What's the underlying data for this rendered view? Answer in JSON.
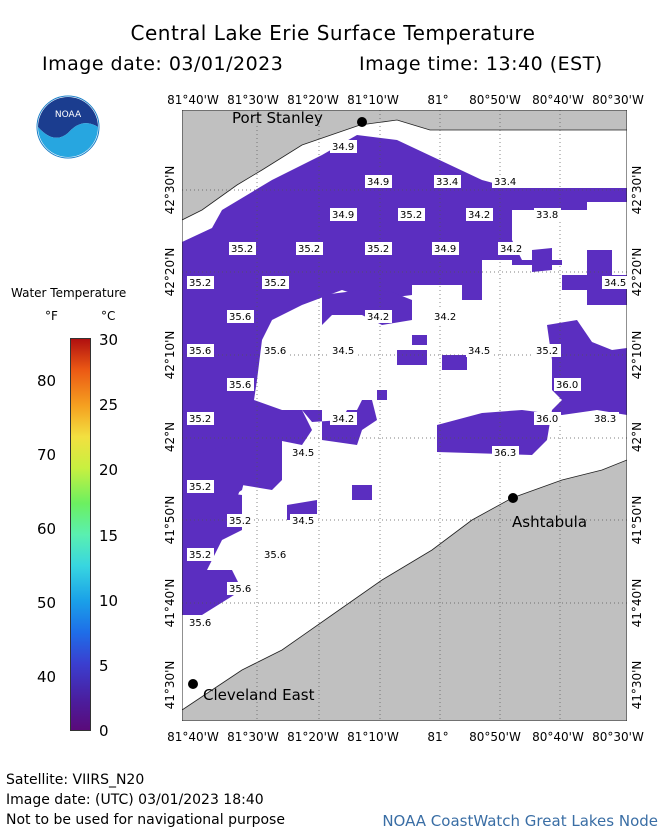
{
  "header": {
    "title": "Central Lake Erie Surface Temperature",
    "image_date": "Image date: 03/01/2023",
    "image_time": "Image time: 13:40 (EST)"
  },
  "logo": {
    "text": "NOAA",
    "icon": "noaa-logo"
  },
  "legend": {
    "title": "Water Temperature",
    "unit_f": "°F",
    "unit_c": "°C",
    "f_ticks": [
      "80",
      "70",
      "60",
      "50",
      "40"
    ],
    "c_ticks": [
      "30",
      "25",
      "20",
      "15",
      "10",
      "5",
      "0"
    ]
  },
  "axes": {
    "top_lon": [
      "81°40'W",
      "81°30'W",
      "81°20'W",
      "81°10'W",
      "81°",
      "80°50'W",
      "80°40'W",
      "80°30'W"
    ],
    "bottom_lon": [
      "81°40'W",
      "81°30'W",
      "81°20'W",
      "81°10'W",
      "81°",
      "80°50'W",
      "80°40'W",
      "80°30'W"
    ],
    "lat": [
      "42°30'N",
      "42°20'N",
      "42°10'N",
      "42°N",
      "41°50'N",
      "41°40'N",
      "41°30'N"
    ]
  },
  "places": {
    "port_stanley": "Port Stanley",
    "ashtabula": "Ashtabula",
    "cleveland_east": "Cleveland East"
  },
  "temperature_labels": [
    "34.9",
    "34.9",
    "33.4",
    "33.4",
    "34.9",
    "35.2",
    "34.2",
    "33.8",
    "35.2",
    "35.2",
    "35.2",
    "34.9",
    "34.2",
    "35.2",
    "35.2",
    "34.2",
    "35.6",
    "34.2",
    "34.5",
    "35.6",
    "35.6",
    "34.5",
    "34.5",
    "35.2",
    "35.6",
    "36.0",
    "35.2",
    "34.2",
    "36.0",
    "38.3",
    "34.5",
    "36.3",
    "35.2",
    "35.2",
    "34.5",
    "35.2",
    "35.6",
    "35.6",
    "35.6"
  ],
  "colors": {
    "water": "#5b2ec0",
    "land": "#c0c0c0",
    "cloud": "#ffffff",
    "grid": "#555555",
    "credit": "#3a6ea5"
  },
  "footer": {
    "satellite": "Satellite: VIIRS_N20",
    "utc_date": "Image date: (UTC) 03/01/2023  18:40",
    "disclaimer": "Not to be used for navigational purpose",
    "credit": "NOAA CoastWatch Great Lakes Node"
  }
}
